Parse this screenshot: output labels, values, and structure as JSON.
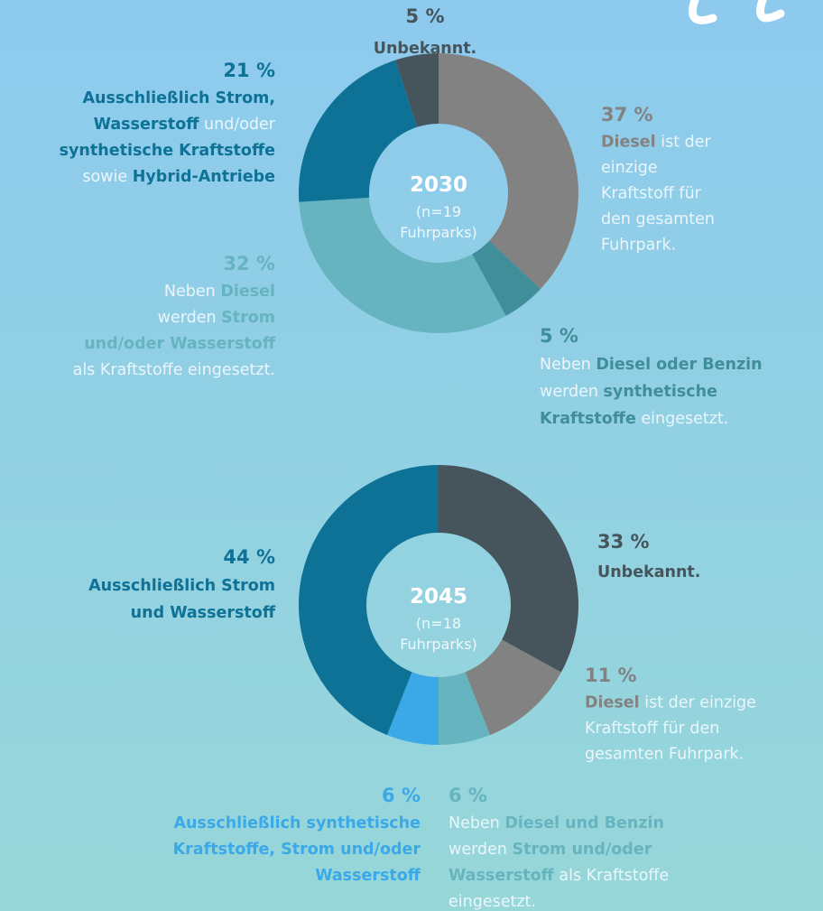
{
  "chart_data": [
    {
      "type": "donut",
      "center_title": "2030",
      "center_sub": [
        "(n=19",
        "Fuhrparks)"
      ],
      "values": [
        37,
        5,
        32,
        21,
        5
      ],
      "value_labels": [
        "37 %",
        "5 %",
        "32 %",
        "21 %",
        "5 %"
      ],
      "colors": [
        "#828282",
        "#3f8e99",
        "#66b4bf",
        "#0e7297",
        "#46555c"
      ],
      "descriptions": [
        [
          [
            {
              "text": "Diesel",
              "bold": true
            },
            {
              "text": " ist der",
              "bold": false
            }
          ],
          [
            {
              "text": "einzige",
              "bold": false
            }
          ],
          [
            {
              "text": "Kraftstoff für",
              "bold": false
            }
          ],
          [
            {
              "text": "den gesamten",
              "bold": false
            }
          ],
          [
            {
              "text": "Fuhrpark.",
              "bold": false
            }
          ]
        ],
        [
          [
            {
              "text": "Neben ",
              "bold": false
            },
            {
              "text": "Diesel oder Benzin",
              "bold": true
            }
          ],
          [
            {
              "text": "werden ",
              "bold": false
            },
            {
              "text": "synthetische",
              "bold": true
            }
          ],
          [
            {
              "text": "Kraftstoffe",
              "bold": true
            },
            {
              "text": " eingesetzt.",
              "bold": false
            }
          ]
        ],
        [
          [
            {
              "text": "Neben ",
              "bold": false
            },
            {
              "text": "Diesel",
              "bold": true
            }
          ],
          [
            {
              "text": "werden ",
              "bold": false
            },
            {
              "text": "Strom",
              "bold": true
            }
          ],
          [
            {
              "text": "und/oder Wasserstoff",
              "bold": true
            }
          ],
          [
            {
              "text": "als Kraftstoffe eingesetzt.",
              "bold": false
            }
          ]
        ],
        [
          [
            {
              "text": "Ausschließlich Strom,",
              "bold": true
            }
          ],
          [
            {
              "text": "Wasserstoff",
              "bold": true
            },
            {
              "text": " und/oder",
              "bold": false
            }
          ],
          [
            {
              "text": "synthetische Kraftstoffe",
              "bold": true
            }
          ],
          [
            {
              "text": "sowie ",
              "bold": false
            },
            {
              "text": "Hybrid-Antriebe",
              "bold": true
            }
          ]
        ],
        [
          [
            {
              "text": "Unbekannt.",
              "bold": true
            }
          ]
        ]
      ]
    },
    {
      "type": "donut",
      "center_title": "2045",
      "center_sub": [
        "(n=18",
        "Fuhrparks)"
      ],
      "values": [
        33,
        11,
        6,
        6,
        44
      ],
      "value_labels": [
        "33 %",
        "11 %",
        "6 %",
        "6 %",
        "44 %"
      ],
      "colors": [
        "#46555c",
        "#828282",
        "#66b4bf",
        "#3ba8e8",
        "#0e7297"
      ],
      "descriptions": [
        [
          [
            {
              "text": "Unbekannt.",
              "bold": true
            }
          ]
        ],
        [
          [
            {
              "text": "Diesel",
              "bold": true
            },
            {
              "text": " ist der einzige",
              "bold": false
            }
          ],
          [
            {
              "text": "Kraftstoff für den",
              "bold": false
            }
          ],
          [
            {
              "text": "gesamten Fuhrpark.",
              "bold": false
            }
          ]
        ],
        [
          [
            {
              "text": "Neben ",
              "bold": false
            },
            {
              "text": "Diesel und Benzin",
              "bold": true
            }
          ],
          [
            {
              "text": "werden ",
              "bold": false
            },
            {
              "text": "Strom und/oder",
              "bold": true
            }
          ],
          [
            {
              "text": "Wasserstoff",
              "bold": true
            },
            {
              "text": " als Kraftstoffe",
              "bold": false
            }
          ],
          [
            {
              "text": "eingesetzt.",
              "bold": false
            }
          ]
        ],
        [
          [
            {
              "text": "Ausschließlich synthetische",
              "bold": true
            }
          ],
          [
            {
              "text": "Kraftstoffe, Strom und/oder",
              "bold": true
            }
          ],
          [
            {
              "text": "Wasserstoff",
              "bold": true
            }
          ]
        ],
        [
          [
            {
              "text": "Ausschließlich Strom",
              "bold": true
            }
          ],
          [
            {
              "text": "und Wasserstoff",
              "bold": true
            }
          ]
        ]
      ]
    }
  ]
}
